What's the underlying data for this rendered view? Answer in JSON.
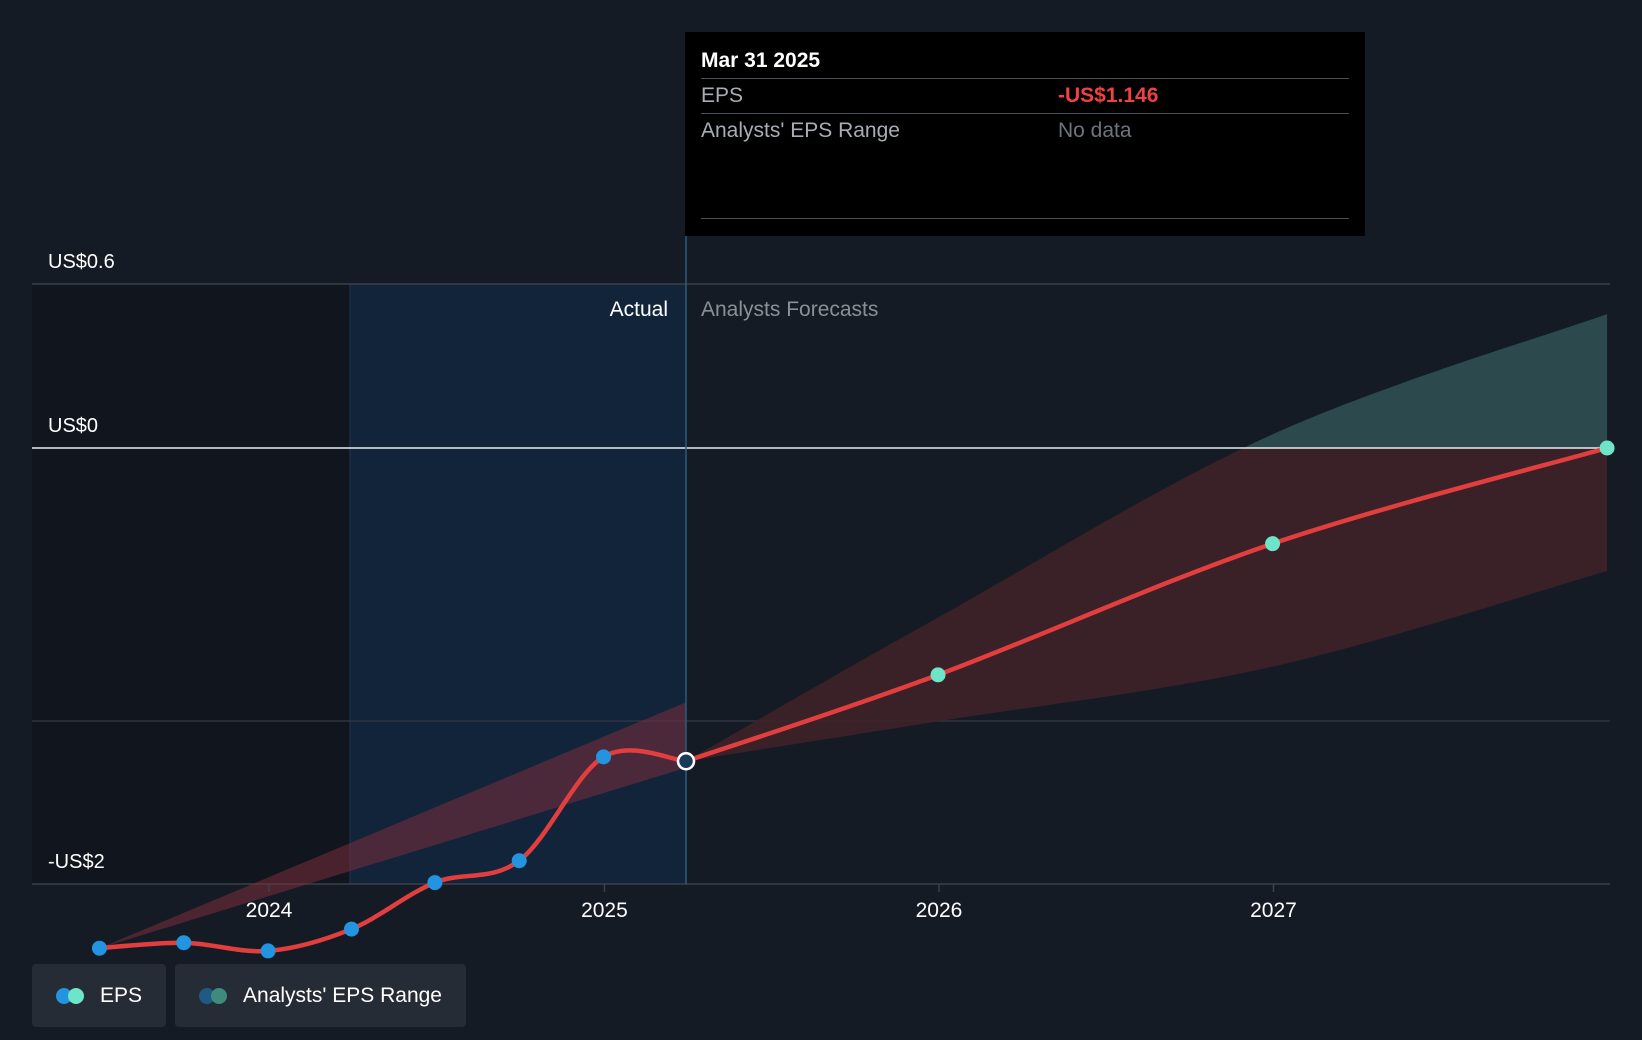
{
  "tooltip": {
    "date": "Mar 31 2025",
    "eps_label": "EPS",
    "eps_value": "-US$1.146",
    "range_label": "Analysts' EPS Range",
    "range_value": "No data"
  },
  "regions": {
    "actual_label": "Actual",
    "forecast_label": "Analysts Forecasts"
  },
  "legend": [
    {
      "label": "EPS",
      "dot_colors": [
        "#2394df",
        "#6ee5c9"
      ]
    },
    {
      "label": "Analysts' EPS Range",
      "dot_colors": [
        "#1e5a84",
        "#3f8a7c"
      ]
    }
  ],
  "colors": {
    "background": "#151b24",
    "eps_line": "#e23e3e",
    "eps_actual_point": "#2394df",
    "eps_forecast_point": "#6ee5c9",
    "range_positive": "#2f5052",
    "range_negative": "#3d2228",
    "actual_highlight": "#12243a"
  },
  "chart_data": {
    "type": "line",
    "y_tick_labels": [
      "US$0.6",
      "US$0",
      "-US$2"
    ],
    "y_ticks": [
      0.6,
      0,
      -2
    ],
    "x_tick_labels": [
      "2024",
      "2025",
      "2026",
      "2027"
    ],
    "ylim": [
      -2,
      0.6
    ],
    "series": [
      {
        "name": "EPS",
        "points": [
          {
            "x": "2023-06-30",
            "y": -1.83
          },
          {
            "x": "2023-09-30",
            "y": -1.81
          },
          {
            "x": "2023-12-31",
            "y": -1.84
          },
          {
            "x": "2024-03-31",
            "y": -1.76
          },
          {
            "x": "2024-06-30",
            "y": -1.59
          },
          {
            "x": "2024-09-30",
            "y": -1.51
          },
          {
            "x": "2024-12-31",
            "y": -1.13
          },
          {
            "x": "2025-03-31",
            "y": -1.146,
            "highlighted": true
          }
        ]
      },
      {
        "name": "EPS forecast",
        "points": [
          {
            "x": "2025-03-31",
            "y": -1.146
          },
          {
            "x": "2025-12-31",
            "y": -0.83
          },
          {
            "x": "2026-12-31",
            "y": -0.35
          },
          {
            "x": "2027-12-31",
            "y": 0.0
          }
        ]
      },
      {
        "name": "Analysts' EPS Range",
        "type": "area",
        "upper": [
          {
            "x": "2025-03-31",
            "y": -1.146
          },
          {
            "x": "2025-12-31",
            "y": -0.62
          },
          {
            "x": "2026-12-31",
            "y": 0.05
          },
          {
            "x": "2027-12-31",
            "y": 0.49
          }
        ],
        "lower": [
          {
            "x": "2025-03-31",
            "y": -1.146
          },
          {
            "x": "2025-12-31",
            "y": -1.0
          },
          {
            "x": "2026-12-31",
            "y": -0.8
          },
          {
            "x": "2027-12-31",
            "y": -0.45
          }
        ]
      },
      {
        "name": "EPS actual range",
        "type": "area",
        "upper": [
          {
            "x": "2023-06-30",
            "y": -1.83
          },
          {
            "x": "2025-03-31",
            "y": -0.93
          }
        ],
        "lower": [
          {
            "x": "2023-06-30",
            "y": -1.83
          },
          {
            "x": "2025-03-31",
            "y": -1.17
          }
        ]
      }
    ]
  }
}
